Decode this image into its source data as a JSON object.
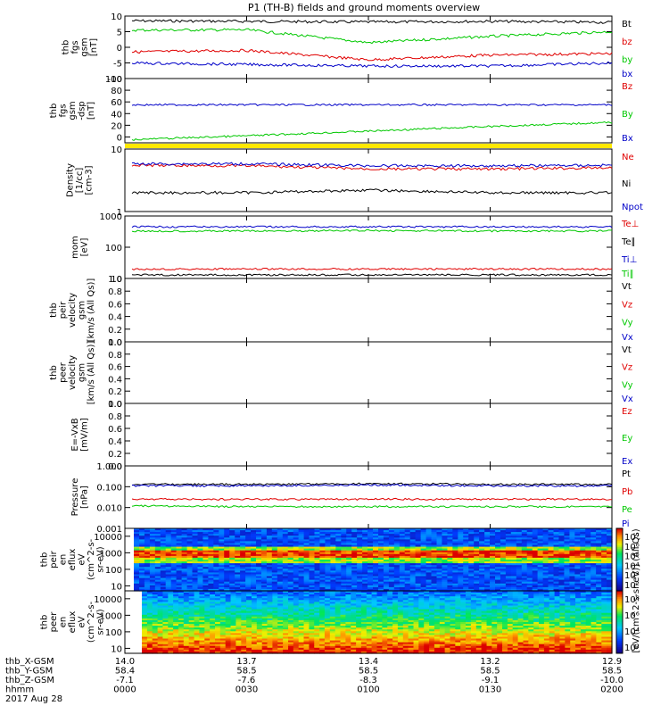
{
  "title": "P1 (TH-B) fields and ground moments overview",
  "colors": {
    "black": "#000000",
    "red": "#e00000",
    "green": "#00c800",
    "blue": "#0000c8",
    "yellow": "#ffe800"
  },
  "panels": [
    {
      "id": "fgs",
      "ylabel": [
        "thb",
        "fgs",
        "gsm",
        "[nT]"
      ],
      "ticks": [
        "10",
        "5",
        "0",
        "-5",
        "-10"
      ],
      "tickvals": [
        10,
        5,
        0,
        -5,
        -10
      ],
      "ylim": [
        -10,
        10
      ],
      "legend": [
        {
          "text": "Bt",
          "color": "black"
        },
        {
          "text": "bz",
          "color": "red"
        },
        {
          "text": "by",
          "color": "green"
        },
        {
          "text": "bx",
          "color": "blue"
        }
      ]
    },
    {
      "id": "fgs_dsl",
      "ylabel": [
        "thb",
        "fgs",
        "gsm",
        "-dsp",
        "[nT]"
      ],
      "ticks": [
        "100",
        "80",
        "60",
        "40",
        "20",
        "0"
      ],
      "tickvals": [
        100,
        80,
        60,
        40,
        20,
        0
      ],
      "ylim": [
        -10,
        100
      ],
      "legend": [
        {
          "text": "Bz",
          "color": "red"
        },
        {
          "text": "By",
          "color": "green"
        },
        {
          "text": "Bx",
          "color": "blue"
        }
      ]
    },
    {
      "id": "density",
      "ylabel": [
        "Density",
        "[1/cc]",
        "[cm-3]"
      ],
      "ticks": [
        "10",
        "1"
      ],
      "tickvals": [
        10,
        1
      ],
      "ylim": [
        1,
        10
      ],
      "log": true,
      "legend": [
        {
          "text": "Ne",
          "color": "red"
        },
        {
          "text": "Ni",
          "color": "black"
        },
        {
          "text": "Npot",
          "color": "blue"
        }
      ]
    },
    {
      "id": "temp",
      "ylabel": [
        "mom",
        "[eV]"
      ],
      "ticks": [
        "1000",
        "100",
        "10"
      ],
      "tickvals": [
        1000,
        100,
        10
      ],
      "ylim": [
        10,
        1000
      ],
      "log": true,
      "legend": [
        {
          "text": "Te⊥",
          "color": "red"
        },
        {
          "text": "Te∥",
          "color": "black"
        },
        {
          "text": "Ti⊥",
          "color": "blue"
        },
        {
          "text": "Ti∥",
          "color": "green"
        }
      ]
    },
    {
      "id": "peir_vel",
      "ylabel": [
        "thb",
        "peir",
        "velocity",
        "gsm",
        "[km/s (All Qs)]"
      ],
      "ticks": [
        "1.0",
        "0.8",
        "0.6",
        "0.4",
        "0.2",
        "0.0"
      ],
      "tickvals": [
        1,
        0.8,
        0.6,
        0.4,
        0.2,
        0
      ],
      "ylim": [
        0,
        1
      ],
      "legend": [
        {
          "text": "Vt",
          "color": "black"
        },
        {
          "text": "Vz",
          "color": "red"
        },
        {
          "text": "Vy",
          "color": "green"
        },
        {
          "text": "Vx",
          "color": "blue"
        }
      ]
    },
    {
      "id": "peer_vel",
      "ylabel": [
        "thb",
        "peer",
        "velocity",
        "gsm",
        "[km/s (All Qs)]"
      ],
      "ticks": [
        "1.0",
        "0.8",
        "0.6",
        "0.4",
        "0.2",
        "0.0"
      ],
      "tickvals": [
        1,
        0.8,
        0.6,
        0.4,
        0.2,
        0
      ],
      "ylim": [
        0,
        1
      ],
      "legend": [
        {
          "text": "Vt",
          "color": "black"
        },
        {
          "text": "Vz",
          "color": "red"
        },
        {
          "text": "Vy",
          "color": "green"
        },
        {
          "text": "Vx",
          "color": "blue"
        }
      ]
    },
    {
      "id": "efield",
      "ylabel": [
        "E=-VxB",
        "[mV/m]"
      ],
      "ticks": [
        "1.0",
        "0.8",
        "0.6",
        "0.4",
        "0.2",
        "0.0"
      ],
      "tickvals": [
        1,
        0.8,
        0.6,
        0.4,
        0.2,
        0
      ],
      "ylim": [
        0,
        1
      ],
      "legend": [
        {
          "text": "Ez",
          "color": "red"
        },
        {
          "text": "Ey",
          "color": "green"
        },
        {
          "text": "Ex",
          "color": "blue"
        }
      ]
    },
    {
      "id": "pressure",
      "ylabel": [
        "Pressure",
        "[nPa]"
      ],
      "ticks": [
        "1.000",
        "0.100",
        "0.010",
        "0.001"
      ],
      "tickvals": [
        1,
        0.1,
        0.01,
        0.001
      ],
      "ylim": [
        0.001,
        1
      ],
      "log": true,
      "legend": [
        {
          "text": "Pt",
          "color": "black"
        },
        {
          "text": "Pb",
          "color": "red"
        },
        {
          "text": "Pe",
          "color": "green"
        },
        {
          "text": "Pi",
          "color": "blue"
        }
      ]
    },
    {
      "id": "peir_spec",
      "ylabel": [
        "thb",
        "peir",
        "en",
        "eflux",
        "eV",
        "(cm^2-s-",
        "sr-eV)"
      ],
      "ticks": [
        "10000",
        "1000",
        "100",
        "10"
      ],
      "tickvals": [
        10000,
        1000,
        100,
        10
      ],
      "ylim": [
        5,
        30000
      ],
      "log": true,
      "spec": true,
      "colorbar": {
        "ticks": [
          "10⁷",
          "10⁶",
          "10⁵",
          "10⁴",
          "10³",
          "10²"
        ]
      }
    },
    {
      "id": "peer_spec",
      "ylabel": [
        "thb",
        "peer",
        "en",
        "eflux",
        "eV",
        "(cm^2-s-",
        "sr-eV)"
      ],
      "ticks": [
        "10000",
        "1000",
        "100",
        "10"
      ],
      "tickvals": [
        10000,
        1000,
        100,
        10
      ],
      "ylim": [
        5,
        30000
      ],
      "log": true,
      "spec": true,
      "colorbar": {
        "ticks": [
          "10⁸",
          "10⁶",
          "10⁴",
          "10²"
        ]
      }
    }
  ],
  "colorbar_label": "[eV/(cm^2-s-sr-eV)] (All Qs)",
  "footer": {
    "rows": [
      {
        "label": "thb_X-GSM",
        "values": [
          "14.0",
          "13.7",
          "13.4",
          "13.2",
          "12.9"
        ]
      },
      {
        "label": "thb_Y-GSM",
        "values": [
          "58.4",
          "58.5",
          "58.5",
          "58.5",
          "58.5"
        ]
      },
      {
        "label": "thb_Z-GSM",
        "values": [
          "-7.1",
          "-7.6",
          "-8.3",
          "-9.1",
          "-10.0"
        ]
      },
      {
        "label": "hhmm",
        "values": [
          "0000",
          "0030",
          "0100",
          "0130",
          "0200"
        ]
      }
    ],
    "date": "2017 Aug 28"
  },
  "chart_data": {
    "type": "line",
    "title": "P1 (TH-B) fields and ground moments overview",
    "x": [
      "0000",
      "0030",
      "0100",
      "0130",
      "0200"
    ],
    "xlabel": "hhmm",
    "series": [
      {
        "panel": "fgs",
        "name": "Bt",
        "values": [
          8.5,
          8.3,
          8.1,
          8.3,
          8.0
        ]
      },
      {
        "panel": "fgs",
        "name": "by",
        "values": [
          5.5,
          5.6,
          1.5,
          3.5,
          5.0
        ]
      },
      {
        "panel": "fgs",
        "name": "bz",
        "values": [
          -1.5,
          -1.0,
          -4.0,
          -2.5,
          -2.0
        ]
      },
      {
        "panel": "fgs",
        "name": "bx",
        "values": [
          -5.0,
          -5.5,
          -6.0,
          -6.0,
          -5.0
        ]
      },
      {
        "panel": "fgs_dsl",
        "name": "By",
        "values": [
          55,
          55,
          55,
          55,
          55
        ]
      },
      {
        "panel": "fgs_dsl",
        "name": "Bx",
        "values": [
          -5,
          2,
          10,
          18,
          25
        ]
      },
      {
        "panel": "density",
        "name": "Ne",
        "values": [
          5.5,
          5.4,
          4.8,
          4.8,
          5.0
        ]
      },
      {
        "panel": "density",
        "name": "Npot",
        "values": [
          5.8,
          5.8,
          5.4,
          5.4,
          5.5
        ]
      },
      {
        "panel": "density",
        "name": "Ni",
        "values": [
          2.0,
          2.0,
          2.2,
          2.0,
          2.0
        ]
      },
      {
        "panel": "temp",
        "name": "Ti⊥",
        "values": [
          450,
          450,
          450,
          450,
          450
        ]
      },
      {
        "panel": "temp",
        "name": "Ti∥",
        "values": [
          330,
          330,
          340,
          330,
          330
        ]
      },
      {
        "panel": "temp",
        "name": "Te⊥",
        "values": [
          20,
          20,
          20,
          20,
          20
        ]
      },
      {
        "panel": "temp",
        "name": "Te∥",
        "values": [
          13,
          13,
          13,
          13,
          13
        ]
      },
      {
        "panel": "pressure",
        "name": "Pt",
        "values": [
          0.13,
          0.13,
          0.14,
          0.13,
          0.13
        ]
      },
      {
        "panel": "pressure",
        "name": "Pi",
        "values": [
          0.11,
          0.11,
          0.12,
          0.11,
          0.11
        ]
      },
      {
        "panel": "pressure",
        "name": "Pb",
        "values": [
          0.025,
          0.025,
          0.025,
          0.025,
          0.025
        ]
      },
      {
        "panel": "pressure",
        "name": "Pe",
        "values": [
          0.012,
          0.011,
          0.011,
          0.011,
          0.011
        ]
      }
    ]
  }
}
